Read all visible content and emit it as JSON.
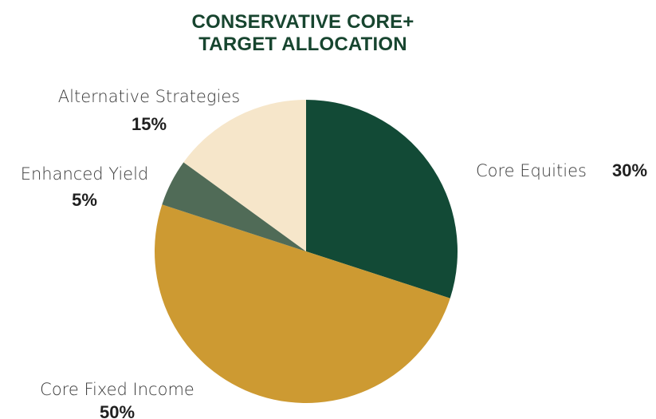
{
  "chart_data": {
    "type": "pie",
    "title_lines": [
      "CONSERVATIVE CORE+",
      "TARGET ALLOCATION"
    ],
    "categories": [
      "Core Equities",
      "Core Fixed Income",
      "Enhanced Yield",
      "Alternative Strategies"
    ],
    "values": [
      30,
      50,
      5,
      15
    ],
    "value_labels": [
      "30%",
      "50%",
      "5%",
      "15%"
    ],
    "colors": [
      "#124a36",
      "#cd9a32",
      "#506b57",
      "#f6e6ca"
    ],
    "title_color": "#17452f",
    "start": "12 o'clock",
    "direction": "clockwise"
  }
}
